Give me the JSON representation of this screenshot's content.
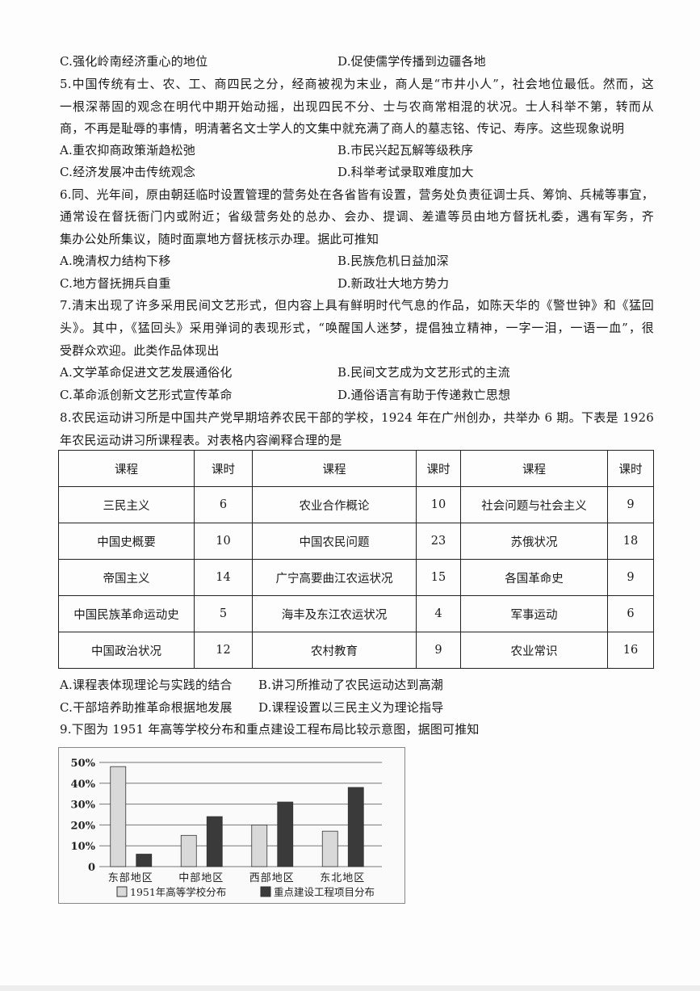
{
  "q4_options": {
    "c": "C.强化岭南经济重心的地位",
    "d": "D.促使儒学传播到边疆各地"
  },
  "q5": {
    "lines": [
      "5.中国传统有士、农、工、商四民之分，经商被视为末业，商人是“市井小人”，社会地位最低。然而，这",
      "一根深蒂固的观念在明代中期开始动摇，出现四民不分、士与农商常相混的状况。士人科举不第，转而从",
      "商，不再是耻辱的事情，明清著名文士学人的文集中就充满了商人的墓志铭、传记、寿序。这些现象说明"
    ],
    "a": "A.重农抑商政策渐趋松弛",
    "b": "B.市民兴起瓦解等级秩序",
    "c": "C.经济发展冲击传统观念",
    "d": "D.科举考试录取难度加大"
  },
  "q6": {
    "lines": [
      "6.同、光年间，原由朝廷临时设置管理的营务处在各省皆有设置，营务处负责征调士兵、筹饷、兵械等事宜，",
      "通常设在督抚衙门内或附近；省级营务处的总办、会办、提调、差遣等员由地方督抚札委，遇有军务，齐",
      "集办公处所集议，随时面禀地方督抚核示办理。据此可推知"
    ],
    "a": "A.晚清权力结构下移",
    "b": "B.民族危机日益加深",
    "c": "C.地方督抚拥兵自重",
    "d": "D.新政壮大地方势力"
  },
  "q7": {
    "lines": [
      "7.清末出现了许多采用民间文艺形式，但内容上具有鲜明时代气息的作品，如陈天华的《警世钟》和《猛回",
      "头》。其中，《猛回头》采用弹词的表现形式，“唤醒国人迷梦，提倡独立精神，一字一泪，一语一血”，很",
      "受群众欢迎。此类作品体现出"
    ],
    "a": "A.文学革命促进文艺发展通俗化",
    "b": "B.民间文艺成为文艺形式的主流",
    "c": "C.革命派创新文艺形式宣传革命",
    "d": "D.通俗语言有助于传递救亡思想"
  },
  "q8": {
    "lines": [
      "8.农民运动讲习所是中国共产党早期培养农民干部的学校，1924 年在广州创办，共举办 6 期。下表是 1926",
      "年农民运动讲习所课程表。对表格内容阐释合理的是"
    ],
    "table": {
      "headers": [
        "课程",
        "课时",
        "课程",
        "课时",
        "课程",
        "课时"
      ],
      "rows": [
        [
          "三民主义",
          "6",
          "农业合作概论",
          "10",
          "社会问题与社会主义",
          "9"
        ],
        [
          "中国史概要",
          "10",
          "中国农民问题",
          "23",
          "苏俄状况",
          "18"
        ],
        [
          "帝国主义",
          "14",
          "广宁高要曲江农运状况",
          "15",
          "各国革命史",
          "9"
        ],
        [
          "中国民族革命运动史",
          "5",
          "海丰及东江农运状况",
          "4",
          "军事运动",
          "6"
        ],
        [
          "中国政治状况",
          "12",
          "农村教育",
          "9",
          "农业常识",
          "16"
        ]
      ]
    },
    "a": "A.课程表体现理论与实践的结合",
    "b": "B.讲习所推动了农民运动达到高潮",
    "c": "C.干部培养助推革命根据地发展",
    "d": "D.课程设置以三民主义为理论指导"
  },
  "q9": {
    "line": "9.下图为 1951 年高等学校分布和重点建设工程布局比较示意图，据图可推知"
  },
  "chart_data": {
    "type": "bar",
    "categories": [
      "东部地区",
      "中部地区",
      "西部地区",
      "东北地区"
    ],
    "series": [
      {
        "name": "1951年高等学校分布",
        "values": [
          48,
          15,
          20,
          17
        ],
        "color": "#d9d9d9"
      },
      {
        "name": "重点建设工程项目分布",
        "values": [
          6,
          24,
          31,
          38
        ],
        "color": "#3a3a3a"
      }
    ],
    "yticks": [
      "0",
      "10%",
      "20%",
      "30%",
      "40%",
      "50%"
    ],
    "ylim": [
      0,
      50
    ],
    "grid": true,
    "legend": "bottom"
  }
}
